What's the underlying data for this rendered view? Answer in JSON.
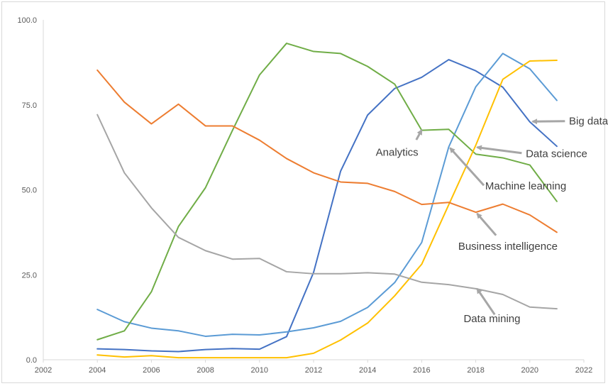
{
  "chart_data": {
    "type": "line",
    "title": "",
    "xlabel": "",
    "ylabel": "",
    "xlim": [
      2002,
      2022
    ],
    "ylim": [
      0,
      100
    ],
    "x_ticks": [
      "2002",
      "2004",
      "2006",
      "2008",
      "2010",
      "2012",
      "2014",
      "2016",
      "2018",
      "2020",
      "2022"
    ],
    "y_ticks": [
      "0.0",
      "25.0",
      "50.0",
      "75.0",
      "100.0"
    ],
    "grid": false,
    "legend": "none",
    "x": [
      2004,
      2005,
      2006,
      2007,
      2008,
      2009,
      2010,
      2011,
      2012,
      2013,
      2014,
      2015,
      2016,
      2017,
      2018,
      2019,
      2020,
      2021
    ],
    "series": [
      {
        "name": "Big data",
        "color": "#4472c4",
        "values": [
          3.2,
          3.0,
          2.6,
          2.4,
          3.0,
          3.3,
          3.1,
          6.8,
          25.7,
          55.5,
          72.0,
          79.8,
          83.1,
          88.3,
          85.0,
          80.2,
          70.0,
          62.8
        ]
      },
      {
        "name": "Data science",
        "color": "#5b9bd5",
        "values": [
          14.8,
          11.2,
          9.3,
          8.5,
          6.9,
          7.5,
          7.3,
          8.2,
          9.4,
          11.3,
          15.4,
          22.7,
          34.5,
          62.6,
          80.3,
          90.1,
          85.6,
          76.3
        ]
      },
      {
        "name": "Analytics",
        "color": "#70ad47",
        "values": [
          5.9,
          8.5,
          20.0,
          39.2,
          50.6,
          67.5,
          83.8,
          93.1,
          90.7,
          90.1,
          86.3,
          81.1,
          67.5,
          67.8,
          60.5,
          59.4,
          57.3,
          46.6
        ]
      },
      {
        "name": "Machine learning",
        "color": "#ffc000",
        "values": [
          1.4,
          0.8,
          1.2,
          0.6,
          0.6,
          0.6,
          0.6,
          0.6,
          1.9,
          5.8,
          10.8,
          18.8,
          28.1,
          45.6,
          63.1,
          82.5,
          87.9,
          88.1
        ]
      },
      {
        "name": "Business intelligence",
        "color": "#ed7d31",
        "values": [
          85.2,
          75.8,
          69.4,
          75.2,
          68.8,
          68.8,
          64.6,
          59.2,
          55.0,
          52.3,
          51.9,
          49.5,
          45.7,
          46.3,
          43.4,
          45.8,
          42.6,
          37.5
        ]
      },
      {
        "name": "Data mining",
        "color": "#a5a5a5",
        "values": [
          72.1,
          55.0,
          44.7,
          36.0,
          32.1,
          29.6,
          29.8,
          25.9,
          25.3,
          25.3,
          25.6,
          25.2,
          22.8,
          22.1,
          20.9,
          19.2,
          15.5,
          15.0
        ]
      }
    ],
    "annotations": [
      {
        "text": "Big data",
        "series": "Big data",
        "point_x": 2020.1,
        "point_y": 70.1,
        "arrow_from_x": 2021.3,
        "arrow_from_y": 70.2,
        "text_x": 2021.45,
        "text_y": 70.2
      },
      {
        "text": "Data science",
        "series": "Data science",
        "point_x": 2018.05,
        "point_y": 62.5,
        "arrow_from_x": 2019.7,
        "arrow_from_y": 60.8,
        "text_x": 2019.85,
        "text_y": 60.6
      },
      {
        "text": "Analytics",
        "series": "Analytics",
        "point_x": 2016.0,
        "point_y": 67.6,
        "arrow_from_x": 2015.8,
        "arrow_from_y": 64.7,
        "text_x": 2014.3,
        "text_y": 61.1
      },
      {
        "text": "Machine learning",
        "series": "Machine learning",
        "point_x": 2017.05,
        "point_y": 62.3,
        "arrow_from_x": 2018.3,
        "arrow_from_y": 51.3,
        "text_x": 2018.35,
        "text_y": 51.2
      },
      {
        "text": "Business intelligence",
        "series": "Business intelligence",
        "point_x": 2018.05,
        "point_y": 43.0,
        "arrow_from_x": 2018.75,
        "arrow_from_y": 36.6,
        "text_x": 2017.35,
        "text_y": 33.4
      },
      {
        "text": "Data mining",
        "series": "Data mining",
        "point_x": 2018.05,
        "point_y": 20.9,
        "arrow_from_x": 2018.7,
        "arrow_from_y": 13.3,
        "text_x": 2017.55,
        "text_y": 12.1
      }
    ]
  }
}
